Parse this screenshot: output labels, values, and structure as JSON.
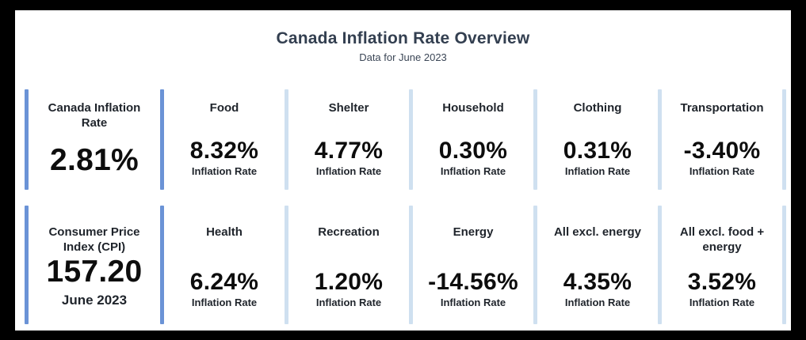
{
  "title": "Canada Inflation Rate Overview",
  "subtitle": "Data for June 2023",
  "colors": {
    "accent_dark": "#6b93d6",
    "accent_light": "#cfe0f0",
    "title_text": "#333f50",
    "value_text": "#0d0d0d",
    "frame_border": "#000000",
    "background": "#ffffff"
  },
  "rows": [
    {
      "cards": [
        {
          "header": "Canada Inflation Rate",
          "value": "2.81%",
          "label": ""
        },
        {
          "header": "Food",
          "value": "8.32%",
          "label": "Inflation Rate"
        },
        {
          "header": "Shelter",
          "value": "4.77%",
          "label": "Inflation Rate"
        },
        {
          "header": "Household",
          "value": "0.30%",
          "label": "Inflation Rate"
        },
        {
          "header": "Clothing",
          "value": "0.31%",
          "label": "Inflation Rate"
        },
        {
          "header": "Transportation",
          "value": "-3.40%",
          "label": "Inflation Rate"
        }
      ]
    },
    {
      "cards": [
        {
          "header": "Consumer Price Index (CPI)",
          "value": "157.20",
          "label": "June 2023"
        },
        {
          "header": "Health",
          "value": "6.24%",
          "label": "Inflation Rate"
        },
        {
          "header": "Recreation",
          "value": "1.20%",
          "label": "Inflation Rate"
        },
        {
          "header": "Energy",
          "value": "-14.56%",
          "label": "Inflation Rate"
        },
        {
          "header": "All excl. energy",
          "value": "4.35%",
          "label": "Inflation Rate"
        },
        {
          "header": "All excl. food + energy",
          "value": "3.52%",
          "label": "Inflation Rate"
        }
      ]
    }
  ],
  "chart_data": {
    "type": "table",
    "title": "Canada Inflation Rate Overview",
    "subtitle": "Data for June 2023",
    "summary_kpis": [
      {
        "name": "Canada Inflation Rate",
        "value": 2.81,
        "unit": "%"
      },
      {
        "name": "Consumer Price Index (CPI)",
        "value": 157.2,
        "period": "June 2023"
      }
    ],
    "categories": [
      "Food",
      "Shelter",
      "Household",
      "Clothing",
      "Transportation",
      "Health",
      "Recreation",
      "Energy",
      "All excl. energy",
      "All excl. food + energy"
    ],
    "values": [
      8.32,
      4.77,
      0.3,
      0.31,
      -3.4,
      6.24,
      1.2,
      -14.56,
      4.35,
      3.52
    ],
    "unit": "%",
    "value_label": "Inflation Rate"
  }
}
